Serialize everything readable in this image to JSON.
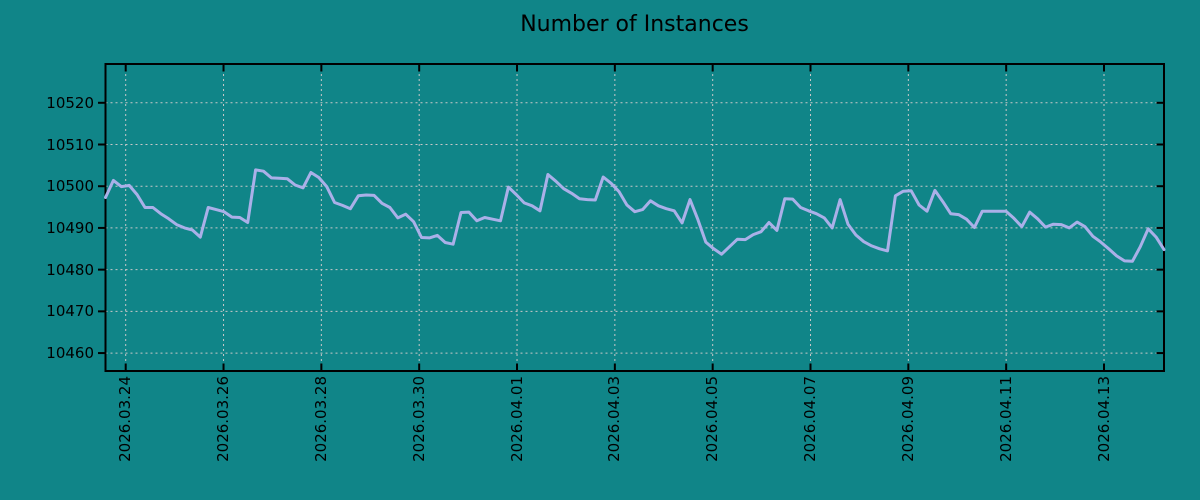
{
  "title": "Number of Instances",
  "colors": {
    "background": "#108588",
    "line": "#aab0e8",
    "grid": "#c8c8c8",
    "border": "#000000",
    "text": "#000000"
  },
  "chart_data": {
    "type": "line",
    "title": "Number of Instances",
    "xlabel": "",
    "ylabel": "",
    "grid": true,
    "legend": false,
    "x_ticks": [
      "2026.03.24",
      "2026.03.26",
      "2026.03.28",
      "2026.03.30",
      "2026.04.01",
      "2026.04.03",
      "2026.04.05",
      "2026.04.07",
      "2026.04.09",
      "2026.04.11",
      "2026.04.13"
    ],
    "y_ticks": [
      10520,
      10510,
      10500,
      10490,
      10480,
      10470,
      10460
    ],
    "ylim": [
      10455.7,
      10529.3
    ],
    "series": [
      {
        "name": "instances",
        "values": [
          10497.3,
          10501.4,
          10499.9,
          10500.2,
          10498.0,
          10494.9,
          10494.9,
          10493.4,
          10492.2,
          10490.8,
          10490.0,
          10489.5,
          10487.8,
          10494.9,
          10494.4,
          10493.9,
          10492.6,
          10492.5,
          10491.3,
          10503.9,
          10503.6,
          10502.0,
          10501.9,
          10501.8,
          10500.3,
          10499.6,
          10503.3,
          10502.1,
          10499.9,
          10496.1,
          10495.4,
          10494.6,
          10497.7,
          10497.9,
          10497.8,
          10495.9,
          10494.9,
          10492.4,
          10493.3,
          10491.5,
          10487.7,
          10487.6,
          10488.2,
          10486.5,
          10486.1,
          10493.7,
          10493.8,
          10491.7,
          10492.5,
          10492.1,
          10491.7,
          10499.8,
          10498.0,
          10496.0,
          10495.3,
          10494.1,
          10502.8,
          10501.2,
          10499.4,
          10498.3,
          10497.0,
          10496.8,
          10496.7,
          10502.2,
          10500.7,
          10498.7,
          10495.5,
          10493.9,
          10494.4,
          10496.5,
          10495.3,
          10494.6,
          10494.1,
          10491.2,
          10496.8,
          10492.0,
          10486.6,
          10485.0,
          10483.7,
          10485.5,
          10487.3,
          10487.2,
          10488.4,
          10489.1,
          10491.3,
          10489.4,
          10497.0,
          10496.9,
          10494.9,
          10494.1,
          10493.4,
          10492.4,
          10490.0,
          10496.8,
          10490.9,
          10488.3,
          10486.7,
          10485.7,
          10485.0,
          10484.5,
          10497.7,
          10498.8,
          10498.9,
          10495.5,
          10494.0,
          10499.0,
          10496.3,
          10493.4,
          10493.2,
          10492.1,
          10490.1,
          10494.0,
          10494.0,
          10494.0,
          10494.0,
          10492.3,
          10490.3,
          10493.8,
          10492.2,
          10490.2,
          10490.9,
          10490.8,
          10490.0,
          10491.4,
          10490.3,
          10488.0,
          10486.6,
          10485.0,
          10483.3,
          10482.1,
          10482.0,
          10485.5,
          10489.8,
          10487.8,
          10484.8
        ]
      }
    ]
  }
}
